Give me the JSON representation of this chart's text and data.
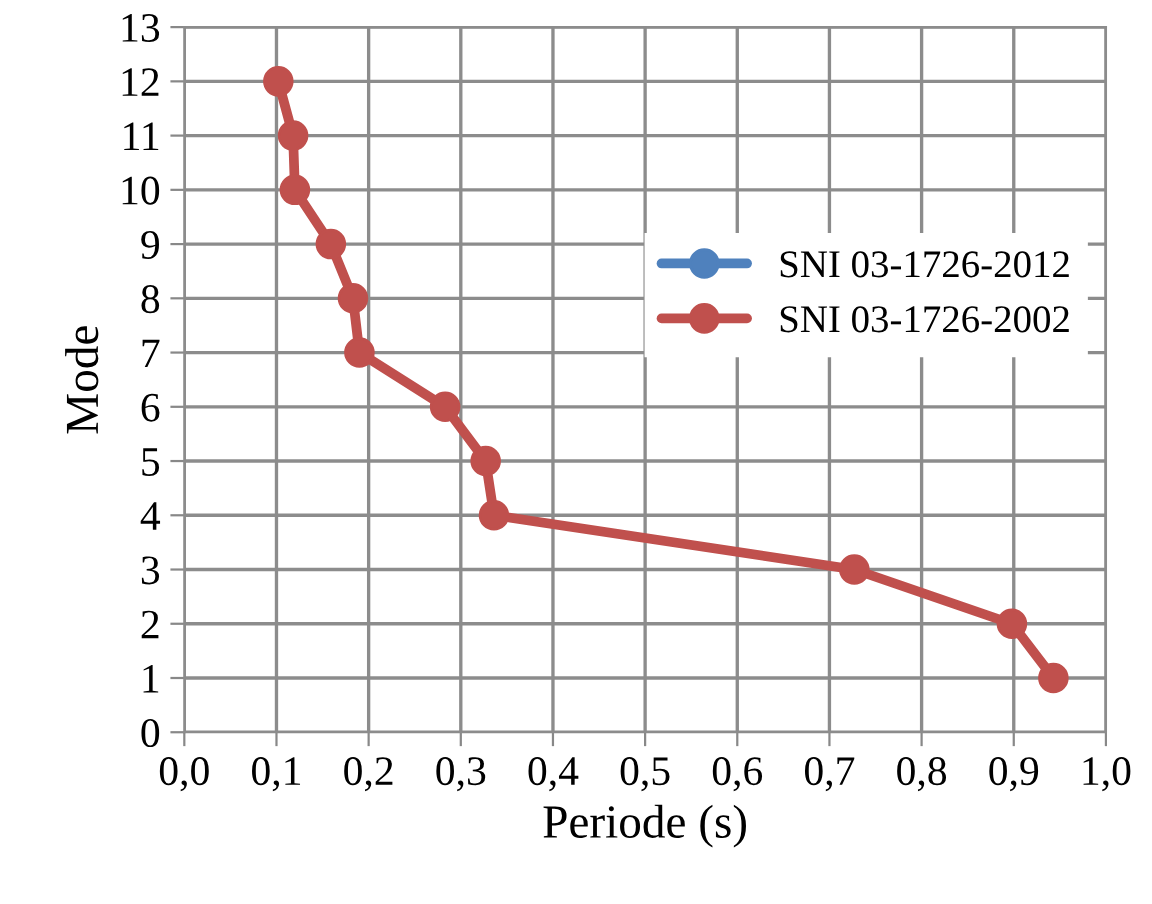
{
  "chart_data": {
    "type": "line",
    "xlabel": "Periode (s)",
    "ylabel": "Mode",
    "series": [
      {
        "name": "SNI 03-1726-2012",
        "color": "#4f81bd",
        "x": [
          null,
          null,
          null,
          null,
          null,
          null,
          null,
          null,
          null,
          null,
          null,
          null
        ],
        "values": [
          null,
          null,
          null,
          null,
          null,
          null,
          null,
          null,
          null,
          null,
          null,
          null
        ]
      },
      {
        "name": "SNI 03-1726-2002",
        "color": "#c0504d",
        "x": [
          0.943,
          0.898,
          0.727,
          0.336,
          0.327,
          0.283,
          0.19,
          0.183,
          0.159,
          0.12,
          0.118,
          0.102
        ],
        "values": [
          1,
          2,
          3,
          4,
          5,
          6,
          7,
          8,
          9,
          10,
          11,
          12
        ]
      }
    ],
    "xlim": [
      0,
      1
    ],
    "xticks": [
      {
        "value": 0,
        "label": "0,0"
      },
      {
        "value": 0.1,
        "label": "0,1"
      },
      {
        "value": 0.2,
        "label": "0,2"
      },
      {
        "value": 0.3,
        "label": "0,3"
      },
      {
        "value": 0.4,
        "label": "0,4"
      },
      {
        "value": 0.5,
        "label": "0,5"
      },
      {
        "value": 0.6,
        "label": "0,6"
      },
      {
        "value": 0.7,
        "label": "0,7"
      },
      {
        "value": 0.8,
        "label": "0,8"
      },
      {
        "value": 0.9,
        "label": "0,9"
      },
      {
        "value": 1,
        "label": "1,0"
      }
    ],
    "ylim": [
      0,
      13
    ],
    "yticks": [
      0,
      1,
      2,
      3,
      4,
      5,
      6,
      7,
      8,
      9,
      10,
      11,
      12,
      13
    ],
    "grid": true,
    "legend": "right",
    "marker": "circle",
    "line_style": "solid"
  }
}
